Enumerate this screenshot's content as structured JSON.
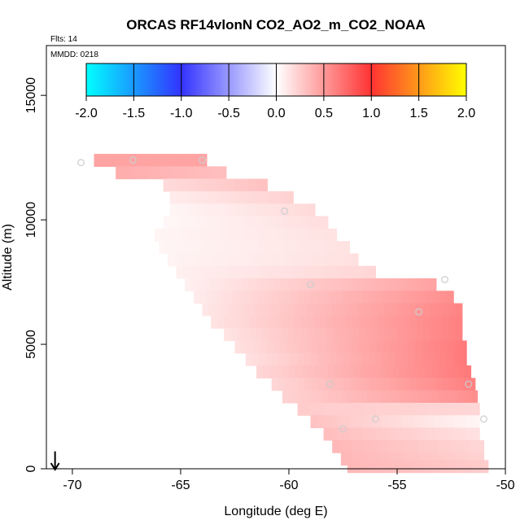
{
  "chart_data": {
    "type": "heatmap",
    "title": "ORCAS RF14vlonN CO2_AO2_m_CO2_NOAA",
    "subtitle": "Flts: 14",
    "annotation": "MMDD: 0218",
    "xlabel": "Longitude (deg E)",
    "ylabel": "Altitude (m)",
    "xlim": [
      -71.2,
      -50
    ],
    "ylim": [
      0,
      17000
    ],
    "xticks": [
      -70,
      -65,
      -60,
      -55,
      -50
    ],
    "yticks": [
      0,
      5000,
      10000,
      15000
    ],
    "colorbar": {
      "range": [
        -2.0,
        2.0
      ],
      "ticks": [
        "-2.0",
        "-1.5",
        "-1.0",
        "-0.5",
        "0.0",
        "0.5",
        "1.0",
        "1.5",
        "2.0"
      ],
      "stops": [
        {
          "v": -2.0,
          "color": "#00ffff"
        },
        {
          "v": -1.0,
          "color": "#3333ff"
        },
        {
          "v": 0.0,
          "color": "#ffffff"
        },
        {
          "v": 1.0,
          "color": "#ff3333"
        },
        {
          "v": 2.0,
          "color": "#ffff00"
        }
      ]
    },
    "field_rows": [
      {
        "alt": 12400,
        "lon_start": -69.0,
        "lon_end": -63.8,
        "value_start": 0.45,
        "value_end": 0.45
      },
      {
        "alt": 11900,
        "lon_start": -68.0,
        "lon_end": -62.9,
        "value_start": 0.4,
        "value_end": 0.32
      },
      {
        "alt": 11400,
        "lon_start": -65.8,
        "lon_end": -61.0,
        "value_start": 0.18,
        "value_end": 0.3
      },
      {
        "alt": 10900,
        "lon_start": -65.5,
        "lon_end": -59.8,
        "value_start": 0.1,
        "value_end": 0.22
      },
      {
        "alt": 10400,
        "lon_start": -65.5,
        "lon_end": -58.8,
        "value_start": 0.05,
        "value_end": 0.18
      },
      {
        "alt": 9900,
        "lon_start": -65.8,
        "lon_end": -58.2,
        "value_start": 0.04,
        "value_end": 0.16
      },
      {
        "alt": 9400,
        "lon_start": -66.2,
        "lon_end": -57.8,
        "value_start": 0.05,
        "value_end": 0.14
      },
      {
        "alt": 8900,
        "lon_start": -66.0,
        "lon_end": -57.2,
        "value_start": 0.05,
        "value_end": 0.14
      },
      {
        "alt": 8400,
        "lon_start": -65.6,
        "lon_end": -56.8,
        "value_start": 0.06,
        "value_end": 0.15
      },
      {
        "alt": 7900,
        "lon_start": -65.2,
        "lon_end": -56.0,
        "value_start": 0.08,
        "value_end": 0.2
      },
      {
        "alt": 7400,
        "lon_start": -64.8,
        "lon_end": -53.2,
        "value_start": 0.08,
        "value_end": 0.45
      },
      {
        "alt": 6900,
        "lon_start": -64.4,
        "lon_end": -52.4,
        "value_start": 0.1,
        "value_end": 0.55
      },
      {
        "alt": 6400,
        "lon_start": -64.0,
        "lon_end": -52.0,
        "value_start": 0.12,
        "value_end": 0.6
      },
      {
        "alt": 5900,
        "lon_start": -63.6,
        "lon_end": -52.0,
        "value_start": 0.14,
        "value_end": 0.62
      },
      {
        "alt": 5400,
        "lon_start": -63.0,
        "lon_end": -52.0,
        "value_start": 0.14,
        "value_end": 0.62
      },
      {
        "alt": 4900,
        "lon_start": -62.5,
        "lon_end": -51.8,
        "value_start": 0.15,
        "value_end": 0.65
      },
      {
        "alt": 4400,
        "lon_start": -62.0,
        "lon_end": -51.8,
        "value_start": 0.15,
        "value_end": 0.65
      },
      {
        "alt": 3900,
        "lon_start": -61.5,
        "lon_end": -51.6,
        "value_start": 0.2,
        "value_end": 0.65
      },
      {
        "alt": 3400,
        "lon_start": -60.8,
        "lon_end": -51.4,
        "value_start": 0.2,
        "value_end": 0.62
      },
      {
        "alt": 2900,
        "lon_start": -60.3,
        "lon_end": -51.3,
        "value_start": 0.22,
        "value_end": 0.55
      },
      {
        "alt": 2400,
        "lon_start": -59.6,
        "lon_end": -51.2,
        "value_start": 0.25,
        "value_end": 0.2
      },
      {
        "alt": 1900,
        "lon_start": -59.0,
        "lon_end": -51.2,
        "value_start": 0.3,
        "value_end": 0.05
      },
      {
        "alt": 1400,
        "lon_start": -58.4,
        "lon_end": -51.2,
        "value_start": 0.32,
        "value_end": 0.15
      },
      {
        "alt": 900,
        "lon_start": -58.0,
        "lon_end": -51.0,
        "value_start": 0.35,
        "value_end": 0.2
      },
      {
        "alt": 400,
        "lon_start": -57.6,
        "lon_end": -51.0,
        "value_start": 0.35,
        "value_end": 0.22
      },
      {
        "alt": 100,
        "lon_start": -57.3,
        "lon_end": -50.8,
        "value_start": 0.35,
        "value_end": 0.25
      }
    ],
    "sample_points": [
      {
        "lon": -69.6,
        "alt": 12300
      },
      {
        "lon": -67.2,
        "alt": 12400
      },
      {
        "lon": -64.0,
        "alt": 12400
      },
      {
        "lon": -60.2,
        "alt": 10350
      },
      {
        "lon": -59.0,
        "alt": 7400
      },
      {
        "lon": -54.0,
        "alt": 6300
      },
      {
        "lon": -52.8,
        "alt": 7600
      },
      {
        "lon": -58.1,
        "alt": 3400
      },
      {
        "lon": -57.5,
        "alt": 1600
      },
      {
        "lon": -56.0,
        "alt": 2000
      },
      {
        "lon": -51.0,
        "alt": 2000
      },
      {
        "lon": -51.7,
        "alt": 3400
      }
    ],
    "marker": {
      "lon": -70.8,
      "alt": 700,
      "label": "arrow"
    }
  }
}
